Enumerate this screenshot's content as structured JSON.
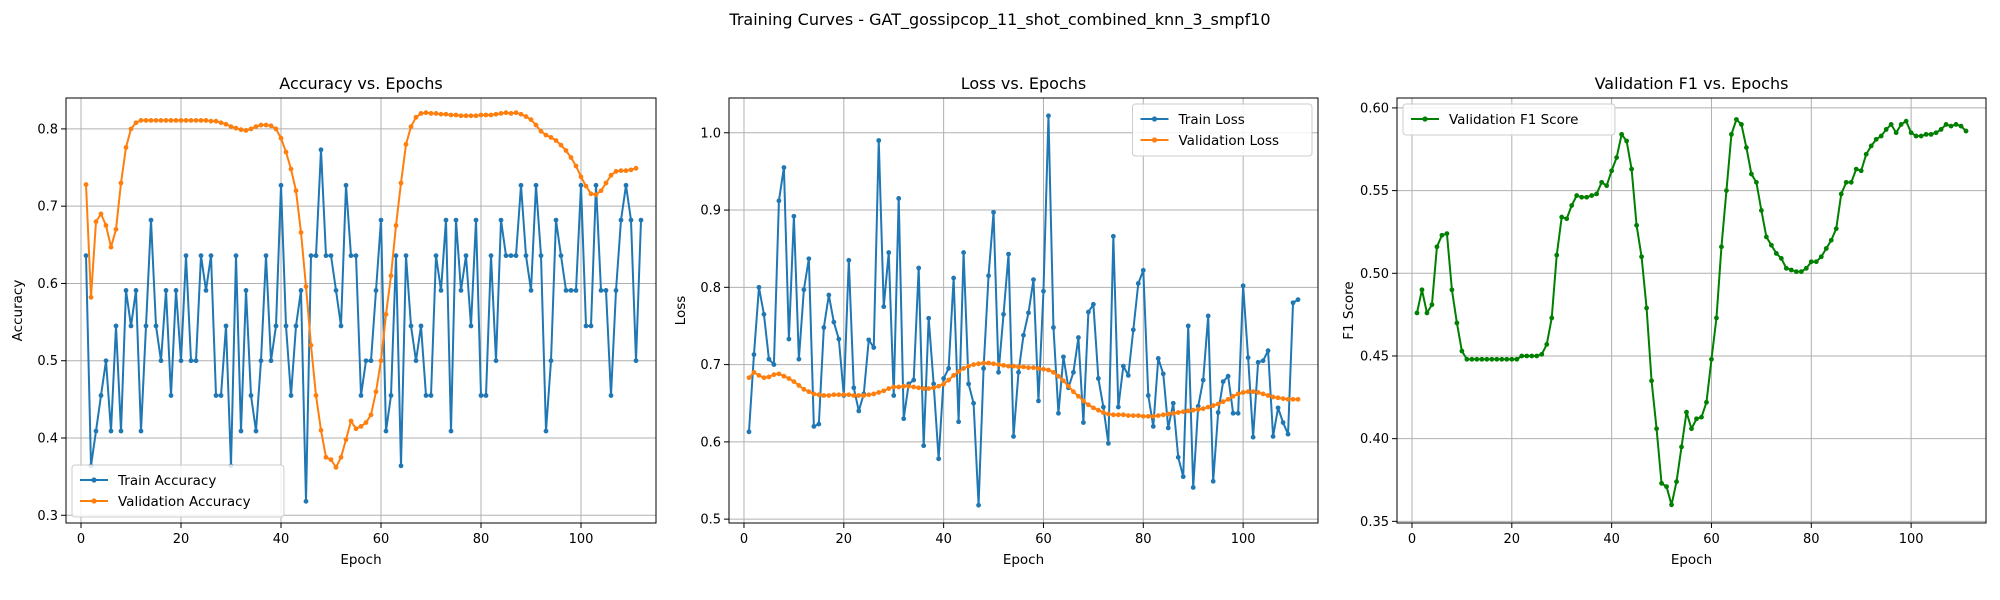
{
  "figure": {
    "title": "Training Curves - GAT_gossipcop_11_shot_combined_knn_3_smpf10"
  },
  "colors": {
    "train": "#1f77b4",
    "validation": "#ff7f0e",
    "f1": "#008000",
    "grid": "#b0b0b0"
  },
  "chart_data": [
    {
      "type": "line",
      "title": "Accuracy vs. Epochs",
      "xlabel": "Epoch",
      "ylabel": "Accuracy",
      "xlim": [
        -3,
        115
      ],
      "ylim": [
        0.29,
        0.84
      ],
      "xticks": [
        0,
        20,
        40,
        60,
        80,
        100
      ],
      "yticks": [
        0.3,
        0.4,
        0.5,
        0.6,
        0.7,
        0.8
      ],
      "ytick_decimals": 1,
      "grid": true,
      "legend": "lower-left",
      "x_start": 1,
      "series": [
        {
          "name": "Train Accuracy",
          "color_key": "train",
          "values": [
            0.636,
            0.364,
            0.409,
            0.455,
            0.5,
            0.409,
            0.545,
            0.409,
            0.591,
            0.545,
            0.591,
            0.409,
            0.545,
            0.682,
            0.545,
            0.5,
            0.591,
            0.455,
            0.591,
            0.5,
            0.636,
            0.5,
            0.5,
            0.636,
            0.591,
            0.636,
            0.455,
            0.455,
            0.545,
            0.364,
            0.636,
            0.409,
            0.591,
            0.455,
            0.409,
            0.5,
            0.636,
            0.5,
            0.545,
            0.727,
            0.545,
            0.455,
            0.545,
            0.591,
            0.318,
            0.636,
            0.636,
            0.773,
            0.636,
            0.636,
            0.591,
            0.545,
            0.727,
            0.636,
            0.636,
            0.455,
            0.5,
            0.5,
            0.591,
            0.682,
            0.409,
            0.455,
            0.636,
            0.364,
            0.636,
            0.545,
            0.5,
            0.545,
            0.455,
            0.455,
            0.636,
            0.591,
            0.682,
            0.409,
            0.682,
            0.591,
            0.636,
            0.545,
            0.682,
            0.455,
            0.455,
            0.636,
            0.5,
            0.682,
            0.636,
            0.636,
            0.636,
            0.727,
            0.636,
            0.591,
            0.727,
            0.636,
            0.409,
            0.5,
            0.682,
            0.636,
            0.591,
            0.591,
            0.591,
            0.727,
            0.545,
            0.545,
            0.727,
            0.591,
            0.591,
            0.455,
            0.591,
            0.682,
            0.727,
            0.682,
            0.5,
            0.682
          ]
        },
        {
          "name": "Validation Accuracy",
          "color_key": "validation",
          "values": [
            0.728,
            0.582,
            0.68,
            0.69,
            0.675,
            0.647,
            0.67,
            0.73,
            0.776,
            0.8,
            0.808,
            0.811,
            0.811,
            0.811,
            0.811,
            0.811,
            0.811,
            0.811,
            0.811,
            0.811,
            0.811,
            0.811,
            0.811,
            0.811,
            0.811,
            0.81,
            0.81,
            0.808,
            0.806,
            0.803,
            0.801,
            0.799,
            0.798,
            0.8,
            0.803,
            0.805,
            0.805,
            0.804,
            0.8,
            0.788,
            0.77,
            0.748,
            0.72,
            0.666,
            0.596,
            0.52,
            0.455,
            0.41,
            0.375,
            0.372,
            0.362,
            0.375,
            0.398,
            0.422,
            0.412,
            0.415,
            0.42,
            0.43,
            0.46,
            0.5,
            0.56,
            0.61,
            0.675,
            0.73,
            0.78,
            0.803,
            0.815,
            0.82,
            0.821,
            0.82,
            0.82,
            0.819,
            0.819,
            0.818,
            0.818,
            0.817,
            0.817,
            0.817,
            0.817,
            0.818,
            0.818,
            0.818,
            0.819,
            0.82,
            0.821,
            0.82,
            0.821,
            0.819,
            0.816,
            0.812,
            0.805,
            0.797,
            0.792,
            0.789,
            0.785,
            0.779,
            0.772,
            0.763,
            0.752,
            0.738,
            0.726,
            0.716,
            0.715,
            0.72,
            0.73,
            0.74,
            0.745,
            0.746,
            0.746,
            0.747,
            0.749
          ]
        }
      ]
    },
    {
      "type": "line",
      "title": "Loss vs. Epochs",
      "xlabel": "Epoch",
      "ylabel": "Loss",
      "xlim": [
        -3,
        115
      ],
      "ylim": [
        0.495,
        1.045
      ],
      "xticks": [
        0,
        20,
        40,
        60,
        80,
        100
      ],
      "yticks": [
        0.5,
        0.6,
        0.7,
        0.8,
        0.9,
        1.0
      ],
      "ytick_decimals": 1,
      "grid": true,
      "legend": "upper-right",
      "x_start": 1,
      "series": [
        {
          "name": "Train Loss",
          "color_key": "train",
          "values": [
            0.613,
            0.713,
            0.8,
            0.765,
            0.707,
            0.7,
            0.912,
            0.955,
            0.733,
            0.892,
            0.707,
            0.797,
            0.837,
            0.62,
            0.623,
            0.748,
            0.79,
            0.755,
            0.733,
            0.66,
            0.835,
            0.67,
            0.64,
            0.662,
            0.732,
            0.722,
            0.99,
            0.775,
            0.845,
            0.66,
            0.915,
            0.63,
            0.675,
            0.68,
            0.825,
            0.595,
            0.76,
            0.675,
            0.578,
            0.682,
            0.695,
            0.812,
            0.626,
            0.845,
            0.675,
            0.65,
            0.518,
            0.695,
            0.815,
            0.897,
            0.69,
            0.765,
            0.843,
            0.607,
            0.69,
            0.738,
            0.767,
            0.81,
            0.653,
            0.795,
            1.022,
            0.748,
            0.637,
            0.71,
            0.67,
            0.69,
            0.735,
            0.625,
            0.768,
            0.778,
            0.682,
            0.645,
            0.598,
            0.866,
            0.645,
            0.698,
            0.686,
            0.745,
            0.805,
            0.822,
            0.66,
            0.62,
            0.708,
            0.688,
            0.618,
            0.65,
            0.58,
            0.555,
            0.75,
            0.541,
            0.646,
            0.68,
            0.763,
            0.549,
            0.638,
            0.678,
            0.685,
            0.637,
            0.637,
            0.802,
            0.709,
            0.606,
            0.703,
            0.705,
            0.718,
            0.607,
            0.644,
            0.625,
            0.61,
            0.78,
            0.784
          ]
        },
        {
          "name": "Validation Loss",
          "color_key": "validation",
          "values": [
            0.683,
            0.69,
            0.686,
            0.683,
            0.684,
            0.687,
            0.688,
            0.685,
            0.682,
            0.678,
            0.673,
            0.668,
            0.665,
            0.662,
            0.661,
            0.66,
            0.66,
            0.661,
            0.661,
            0.661,
            0.661,
            0.66,
            0.66,
            0.66,
            0.661,
            0.662,
            0.664,
            0.666,
            0.669,
            0.671,
            0.671,
            0.672,
            0.672,
            0.671,
            0.67,
            0.669,
            0.669,
            0.67,
            0.672,
            0.675,
            0.68,
            0.686,
            0.691,
            0.695,
            0.698,
            0.7,
            0.701,
            0.702,
            0.702,
            0.701,
            0.7,
            0.699,
            0.698,
            0.698,
            0.697,
            0.697,
            0.696,
            0.696,
            0.695,
            0.694,
            0.693,
            0.69,
            0.685,
            0.679,
            0.672,
            0.665,
            0.659,
            0.653,
            0.648,
            0.644,
            0.641,
            0.638,
            0.636,
            0.635,
            0.635,
            0.635,
            0.634,
            0.634,
            0.634,
            0.633,
            0.633,
            0.633,
            0.634,
            0.635,
            0.636,
            0.637,
            0.638,
            0.639,
            0.64,
            0.641,
            0.642,
            0.643,
            0.645,
            0.647,
            0.649,
            0.652,
            0.655,
            0.659,
            0.662,
            0.664,
            0.665,
            0.665,
            0.664,
            0.662,
            0.66,
            0.658,
            0.657,
            0.656,
            0.655,
            0.655,
            0.655
          ]
        }
      ]
    },
    {
      "type": "line",
      "title": "Validation F1 vs. Epochs",
      "xlabel": "Epoch",
      "ylabel": "F1 Score",
      "xlim": [
        -3,
        115
      ],
      "ylim": [
        0.349,
        0.606
      ],
      "xticks": [
        0,
        20,
        40,
        60,
        80,
        100
      ],
      "yticks": [
        0.35,
        0.4,
        0.45,
        0.5,
        0.55,
        0.6
      ],
      "ytick_decimals": 2,
      "grid": true,
      "legend": "upper-left",
      "x_start": 1,
      "series": [
        {
          "name": "Validation F1 Score",
          "color_key": "f1",
          "values": [
            0.476,
            0.49,
            0.476,
            0.481,
            0.516,
            0.523,
            0.524,
            0.49,
            0.47,
            0.453,
            0.448,
            0.448,
            0.448,
            0.448,
            0.448,
            0.448,
            0.448,
            0.448,
            0.448,
            0.448,
            0.448,
            0.45,
            0.45,
            0.45,
            0.45,
            0.451,
            0.457,
            0.473,
            0.511,
            0.534,
            0.533,
            0.541,
            0.547,
            0.546,
            0.546,
            0.547,
            0.548,
            0.555,
            0.553,
            0.562,
            0.57,
            0.584,
            0.58,
            0.563,
            0.529,
            0.51,
            0.479,
            0.435,
            0.406,
            0.373,
            0.371,
            0.36,
            0.374,
            0.395,
            0.416,
            0.406,
            0.412,
            0.413,
            0.422,
            0.448,
            0.473,
            0.516,
            0.55,
            0.584,
            0.593,
            0.59,
            0.576,
            0.56,
            0.555,
            0.538,
            0.522,
            0.517,
            0.512,
            0.509,
            0.503,
            0.502,
            0.501,
            0.501,
            0.503,
            0.507,
            0.507,
            0.51,
            0.515,
            0.52,
            0.527,
            0.548,
            0.555,
            0.555,
            0.563,
            0.562,
            0.572,
            0.577,
            0.581,
            0.583,
            0.587,
            0.59,
            0.585,
            0.59,
            0.592,
            0.585,
            0.583,
            0.583,
            0.584,
            0.584,
            0.585,
            0.587,
            0.59,
            0.589,
            0.59,
            0.589,
            0.586
          ]
        }
      ]
    }
  ]
}
